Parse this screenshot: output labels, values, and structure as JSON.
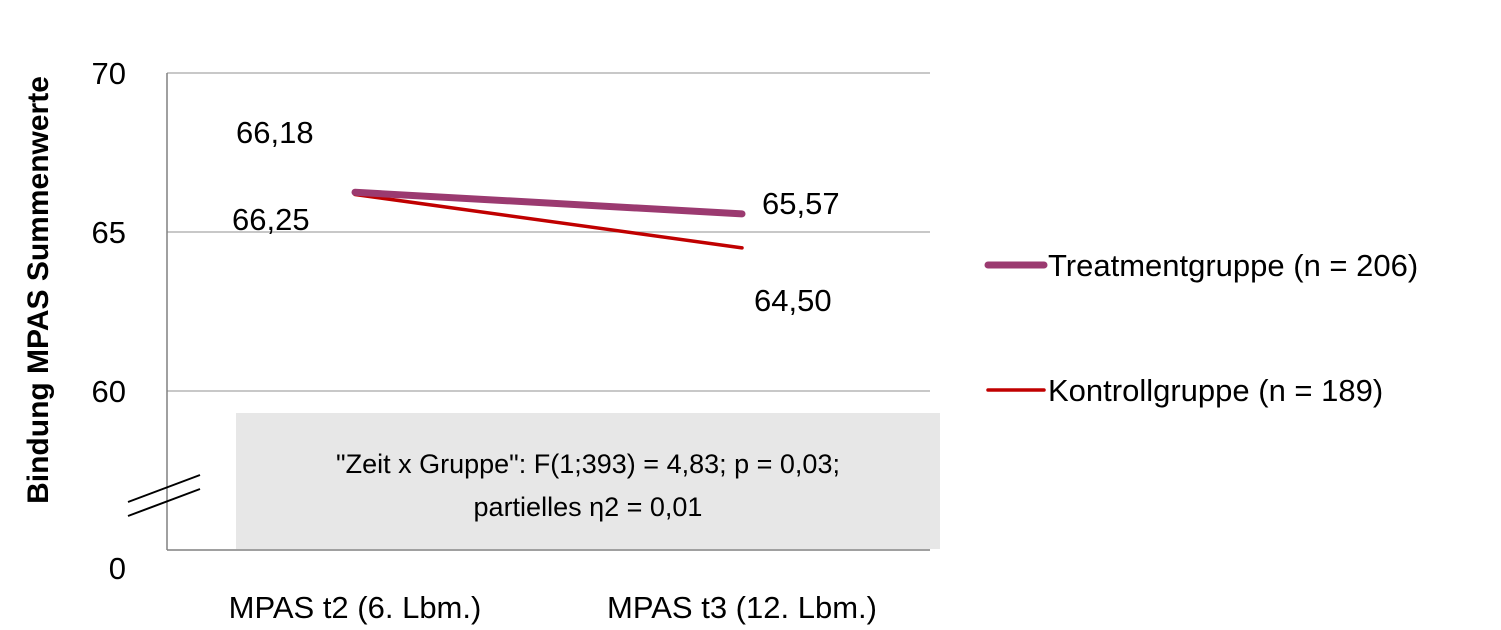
{
  "chart_data": {
    "type": "line",
    "title": "",
    "xlabel": "",
    "ylabel": "Bindung MPAS Summenwerte",
    "categories": [
      "MPAS t2 (6. Lbm.)",
      "MPAS t3 (12. Lbm.)"
    ],
    "series": [
      {
        "name": "Treatmentgruppe (n = 206)",
        "values": [
          66.25,
          65.57
        ],
        "labels": [
          "66,25",
          "65,57"
        ],
        "color": "#9b3a70"
      },
      {
        "name": "Kontrollgruppe (n = 189)",
        "values": [
          66.18,
          64.5
        ],
        "labels": [
          "66,18",
          "64,50"
        ],
        "color": "#c00000"
      }
    ],
    "yticks": [
      {
        "value": 70,
        "label": "70"
      },
      {
        "value": 65,
        "label": "65"
      },
      {
        "value": 60,
        "label": "60"
      }
    ],
    "ybase_label": "0",
    "ylim": [
      0,
      70
    ],
    "axis_break": true,
    "grid": true,
    "legend_position": "right",
    "annotation": {
      "line1": "\"Zeit x Gruppe\": F(1;393) = 4,83; p = 0,03;",
      "line2": "partielles η2 = 0,01",
      "background": "#e7e7e7"
    }
  }
}
